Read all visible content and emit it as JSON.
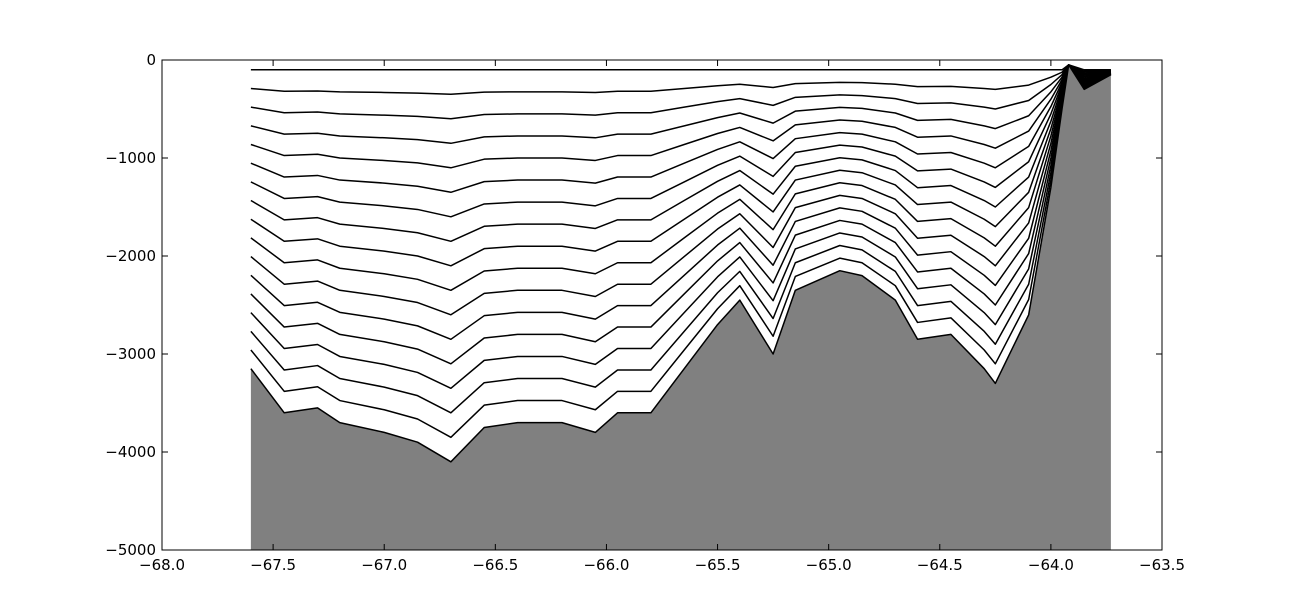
{
  "chart_data": {
    "type": "line",
    "x": [
      -67.6,
      -67.45,
      -67.3,
      -67.2,
      -67.0,
      -66.85,
      -66.7,
      -66.55,
      -66.4,
      -66.2,
      -66.05,
      -65.95,
      -65.8,
      -65.65,
      -65.5,
      -65.4,
      -65.25,
      -65.15,
      -64.95,
      -64.85,
      -64.7,
      -64.6,
      -64.45,
      -64.3,
      -64.25,
      -64.1,
      -64.0,
      -63.95,
      -63.92,
      -63.85,
      -63.73
    ],
    "series": [
      {
        "color": "#000000",
        "values": [
          -100,
          -100,
          -100,
          -100,
          -100,
          -100,
          -100,
          -100,
          -100,
          -100,
          -100,
          -100,
          -100,
          -100,
          -100,
          -100,
          -100,
          -100,
          -100,
          -100,
          -100,
          -100,
          -100,
          -100,
          -100,
          -100,
          -100,
          -100,
          -50,
          -100,
          -100
        ]
      },
      {
        "color": "#000000",
        "values": [
          -291,
          -319,
          -316,
          -325,
          -331,
          -338,
          -350,
          -328,
          -325,
          -325,
          -331,
          -319,
          -319,
          -291,
          -263,
          -247,
          -281,
          -241,
          -228,
          -231,
          -247,
          -272,
          -269,
          -291,
          -300,
          -256,
          -175,
          -125,
          -50,
          -113,
          -103
        ]
      },
      {
        "color": "#000000",
        "values": [
          -481,
          -538,
          -531,
          -550,
          -563,
          -575,
          -600,
          -556,
          -550,
          -550,
          -563,
          -538,
          -538,
          -481,
          -425,
          -394,
          -463,
          -381,
          -356,
          -363,
          -394,
          -444,
          -438,
          -481,
          -500,
          -413,
          -250,
          -150,
          -50,
          -125,
          -106
        ]
      },
      {
        "color": "#000000",
        "values": [
          -672,
          -756,
          -747,
          -775,
          -794,
          -813,
          -850,
          -784,
          -775,
          -775,
          -794,
          -756,
          -756,
          -672,
          -588,
          -541,
          -644,
          -522,
          -484,
          -494,
          -541,
          -616,
          -606,
          -672,
          -700,
          -569,
          -325,
          -175,
          -50,
          -138,
          -109
        ]
      },
      {
        "color": "#000000",
        "values": [
          -862,
          -975,
          -962,
          -1000,
          -1025,
          -1050,
          -1100,
          -1012,
          -1000,
          -1000,
          -1025,
          -975,
          -975,
          -862,
          -750,
          -688,
          -825,
          -662,
          -612,
          -625,
          -688,
          -788,
          -775,
          -862,
          -900,
          -725,
          -400,
          -200,
          -50,
          -150,
          -113
        ]
      },
      {
        "color": "#000000",
        "values": [
          -1053,
          -1194,
          -1178,
          -1225,
          -1256,
          -1288,
          -1350,
          -1241,
          -1225,
          -1225,
          -1256,
          -1194,
          -1194,
          -1053,
          -913,
          -835,
          -1006,
          -803,
          -741,
          -756,
          -835,
          -959,
          -944,
          -1053,
          -1100,
          -881,
          -475,
          -225,
          -50,
          -163,
          -116
        ]
      },
      {
        "color": "#000000",
        "values": [
          -1244,
          -1413,
          -1394,
          -1450,
          -1488,
          -1525,
          -1600,
          -1469,
          -1450,
          -1450,
          -1488,
          -1413,
          -1413,
          -1244,
          -1075,
          -981,
          -1188,
          -944,
          -869,
          -888,
          -981,
          -1131,
          -1113,
          -1244,
          -1300,
          -1038,
          -550,
          -250,
          -50,
          -175,
          -119
        ]
      },
      {
        "color": "#000000",
        "values": [
          -1434,
          -1631,
          -1609,
          -1675,
          -1719,
          -1763,
          -1850,
          -1697,
          -1675,
          -1675,
          -1719,
          -1631,
          -1631,
          -1434,
          -1238,
          -1128,
          -1369,
          -1084,
          -997,
          -1019,
          -1128,
          -1303,
          -1281,
          -1434,
          -1500,
          -1194,
          -625,
          -275,
          -50,
          -188,
          -122
        ]
      },
      {
        "color": "#000000",
        "values": [
          -1625,
          -1850,
          -1825,
          -1900,
          -1950,
          -2000,
          -2100,
          -1925,
          -1900,
          -1900,
          -1950,
          -1850,
          -1850,
          -1625,
          -1400,
          -1275,
          -1550,
          -1225,
          -1125,
          -1150,
          -1275,
          -1475,
          -1450,
          -1625,
          -1700,
          -1350,
          -700,
          -300,
          -50,
          -200,
          -125
        ]
      },
      {
        "color": "#000000",
        "values": [
          -1815,
          -2069,
          -2040,
          -2125,
          -2181,
          -2238,
          -2350,
          -2153,
          -2125,
          -2125,
          -2181,
          -2069,
          -2069,
          -1815,
          -1563,
          -1422,
          -1731,
          -1366,
          -1253,
          -1281,
          -1422,
          -1647,
          -1619,
          -1815,
          -1900,
          -1506,
          -775,
          -325,
          -50,
          -213,
          -128
        ]
      },
      {
        "color": "#000000",
        "values": [
          -2006,
          -2288,
          -2256,
          -2350,
          -2413,
          -2475,
          -2600,
          -2381,
          -2350,
          -2350,
          -2413,
          -2288,
          -2288,
          -2006,
          -1725,
          -1569,
          -1913,
          -1506,
          -1381,
          -1413,
          -1569,
          -1819,
          -1788,
          -2006,
          -2100,
          -1663,
          -850,
          -350,
          -50,
          -225,
          -131
        ]
      },
      {
        "color": "#000000",
        "values": [
          -2197,
          -2506,
          -2472,
          -2575,
          -2644,
          -2713,
          -2850,
          -2609,
          -2575,
          -2575,
          -2644,
          -2506,
          -2506,
          -2197,
          -1888,
          -1716,
          -2094,
          -1647,
          -1509,
          -1544,
          -1716,
          -1991,
          -1956,
          -2197,
          -2300,
          -1819,
          -925,
          -375,
          -50,
          -238,
          -134
        ]
      },
      {
        "color": "#000000",
        "values": [
          -2387,
          -2725,
          -2687,
          -2800,
          -2875,
          -2950,
          -3100,
          -2837,
          -2800,
          -2800,
          -2875,
          -2725,
          -2725,
          -2387,
          -2050,
          -1863,
          -2275,
          -1787,
          -1637,
          -1675,
          -1863,
          -2163,
          -2125,
          -2387,
          -2500,
          -1975,
          -1000,
          -400,
          -50,
          -250,
          -138
        ]
      },
      {
        "color": "#000000",
        "values": [
          -2578,
          -2944,
          -2903,
          -3025,
          -3106,
          -3188,
          -3350,
          -3065,
          -3025,
          -3025,
          -3106,
          -2944,
          -2944,
          -2578,
          -2213,
          -2010,
          -2456,
          -1928,
          -1765,
          -1806,
          -2010,
          -2334,
          -2294,
          -2578,
          -2700,
          -2131,
          -1075,
          -425,
          -50,
          -263,
          -141
        ]
      },
      {
        "color": "#000000",
        "values": [
          -2769,
          -3163,
          -3118,
          -3250,
          -3338,
          -3425,
          -3600,
          -3293,
          -3250,
          -3250,
          -3338,
          -3163,
          -3163,
          -2769,
          -2375,
          -2157,
          -2638,
          -2069,
          -1893,
          -1938,
          -2157,
          -2506,
          -2463,
          -2769,
          -2900,
          -2288,
          -1150,
          -450,
          -50,
          -275,
          -144
        ]
      },
      {
        "color": "#000000",
        "values": [
          -2959,
          -3381,
          -3334,
          -3475,
          -3569,
          -3663,
          -3850,
          -3522,
          -3475,
          -3475,
          -3569,
          -3381,
          -3381,
          -2959,
          -2538,
          -2303,
          -2819,
          -2209,
          -2022,
          -2069,
          -2303,
          -2678,
          -2631,
          -2959,
          -3100,
          -2444,
          -1225,
          -475,
          -50,
          -288,
          -147
        ]
      },
      {
        "color": "#000000",
        "fill": "#808080",
        "values": [
          -3150,
          -3600,
          -3550,
          -3700,
          -3800,
          -3900,
          -4100,
          -3750,
          -3700,
          -3700,
          -3800,
          -3600,
          -3600,
          -3150,
          -2700,
          -2450,
          -3000,
          -2350,
          -2150,
          -2200,
          -2450,
          -2850,
          -2800,
          -3150,
          -3300,
          -2600,
          -1300,
          -500,
          -50,
          -300,
          -150
        ]
      }
    ],
    "xlim": [
      -68.0,
      -63.5
    ],
    "xticks": [
      {
        "value": -68.0,
        "label": "−68.0"
      },
      {
        "value": -67.5,
        "label": "−67.5"
      },
      {
        "value": -67.0,
        "label": "−67.0"
      },
      {
        "value": -66.5,
        "label": "−66.5"
      },
      {
        "value": -66.0,
        "label": "−66.0"
      },
      {
        "value": -65.5,
        "label": "−65.5"
      },
      {
        "value": -65.0,
        "label": "−65.0"
      },
      {
        "value": -64.5,
        "label": "−64.5"
      },
      {
        "value": -64.0,
        "label": "−64.0"
      },
      {
        "value": -63.5,
        "label": "−63.5"
      }
    ],
    "ylim": [
      -5000,
      0
    ],
    "yticks": [
      {
        "value": -5000,
        "label": "−5000"
      },
      {
        "value": -4000,
        "label": "−4000"
      },
      {
        "value": -3000,
        "label": "−3000"
      },
      {
        "value": -2000,
        "label": "−2000"
      },
      {
        "value": -1000,
        "label": "−1000"
      },
      0
    ],
    "grid": false
  }
}
